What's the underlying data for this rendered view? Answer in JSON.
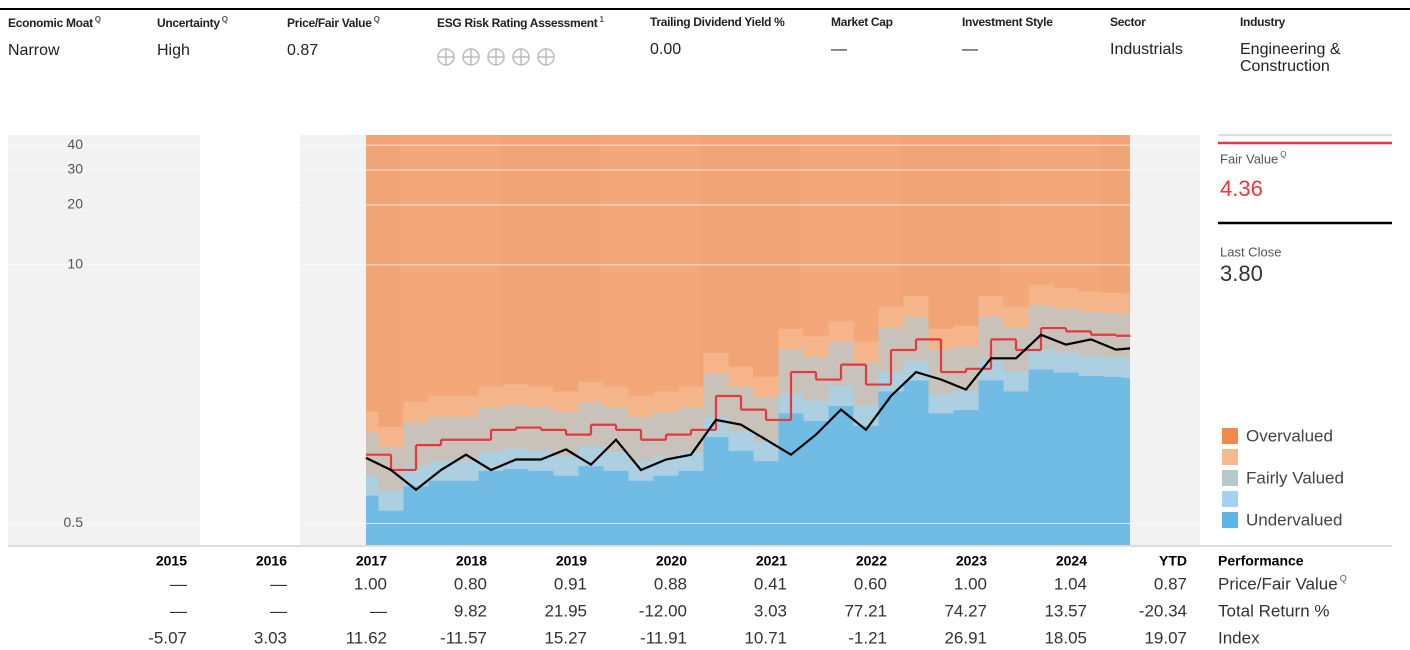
{
  "header": {
    "columns": [
      {
        "label": "Economic Moat",
        "badge": "Q",
        "value": "Narrow"
      },
      {
        "label": "Uncertainty",
        "badge": "Q",
        "value": "High"
      },
      {
        "label": "Price/Fair Value",
        "badge": "Q",
        "value": "0.87"
      },
      {
        "label": "ESG Risk Rating Assessment",
        "note": "1"
      },
      {
        "label": "Trailing Dividend Yield %",
        "value": "0.00"
      },
      {
        "label": "Market Cap",
        "value": "—"
      },
      {
        "label": "Investment Style",
        "value": "—"
      },
      {
        "label": "Sector",
        "value": "Industrials"
      },
      {
        "label": "Industry",
        "value": "Engineering & Construction"
      }
    ]
  },
  "chart_data": {
    "type": "line",
    "log_scale": true,
    "grid": true,
    "x": [
      2017.66,
      2017.91,
      2018.16,
      2018.41,
      2018.66,
      2018.91,
      2019.16,
      2019.41,
      2019.66,
      2019.91,
      2020.16,
      2020.41,
      2020.66,
      2020.91,
      2021.16,
      2021.41,
      2021.66,
      2021.91,
      2022.16,
      2022.41,
      2022.66,
      2022.91,
      2023.16,
      2023.41,
      2023.66,
      2023.91,
      2024.16,
      2024.41,
      2024.66,
      2024.91,
      2025.16,
      2025.3
    ],
    "xlim": [
      2014.08,
      2026.1
    ],
    "ylim": [
      0.39,
      45
    ],
    "yticks": [
      0.5,
      10,
      20,
      30,
      40
    ],
    "series": [
      {
        "name": "Fair Value",
        "badge": "Q",
        "display": "4.36",
        "color": "#e5383f",
        "step": true,
        "values": [
          1.11,
          0.93,
          1.24,
          1.32,
          1.32,
          1.48,
          1.52,
          1.48,
          1.4,
          1.57,
          1.48,
          1.32,
          1.4,
          1.48,
          2.19,
          1.87,
          1.66,
          2.89,
          2.65,
          3.15,
          2.5,
          3.73,
          4.22,
          2.89,
          3.0,
          4.22,
          3.73,
          4.81,
          4.63,
          4.45,
          4.4,
          4.36
        ]
      },
      {
        "name": "Last Close",
        "display": "3.80",
        "color": "#000000",
        "values": [
          1.07,
          0.93,
          0.74,
          0.93,
          1.11,
          0.93,
          1.05,
          1.05,
          1.18,
          0.99,
          1.32,
          0.93,
          1.05,
          1.11,
          1.66,
          1.57,
          1.32,
          1.11,
          1.4,
          1.87,
          1.48,
          2.19,
          2.89,
          2.65,
          2.36,
          3.39,
          3.39,
          4.45,
          3.97,
          4.22,
          3.75,
          3.8
        ]
      }
    ],
    "bands": [
      {
        "name": "Overvalued",
        "color": "#f08a4b"
      },
      {
        "name": null,
        "color": "#f6b990",
        "values": [
          1.83,
          1.53,
          2.05,
          2.18,
          2.18,
          2.44,
          2.51,
          2.44,
          2.31,
          2.59,
          2.44,
          2.18,
          2.31,
          2.44,
          3.61,
          3.09,
          2.74,
          4.77,
          4.37,
          5.2,
          4.13,
          6.15,
          6.96,
          4.77,
          4.95,
          6.96,
          6.15,
          7.94,
          7.64,
          7.34,
          7.26,
          7.19
        ]
      },
      {
        "name": "Fairly Valued",
        "color": "#b8c7c9",
        "values": [
          1.44,
          1.21,
          1.61,
          1.72,
          1.72,
          1.92,
          1.98,
          1.92,
          1.82,
          2.04,
          1.92,
          1.72,
          1.82,
          1.92,
          2.85,
          2.43,
          2.16,
          3.76,
          3.45,
          4.1,
          3.25,
          4.85,
          5.49,
          3.76,
          3.9,
          5.49,
          4.85,
          6.25,
          6.02,
          5.79,
          5.72,
          5.67
        ]
      },
      {
        "name": null,
        "color": "#a3d3ef",
        "values": [
          0.87,
          0.73,
          0.97,
          1.03,
          1.03,
          1.15,
          1.19,
          1.15,
          1.09,
          1.22,
          1.15,
          1.03,
          1.09,
          1.15,
          1.71,
          1.46,
          1.29,
          2.25,
          2.07,
          2.46,
          1.95,
          2.91,
          3.29,
          2.25,
          2.34,
          3.29,
          2.91,
          3.75,
          3.61,
          3.47,
          3.43,
          3.4
        ]
      },
      {
        "name": "Undervalued",
        "color": "#5cb5e6",
        "values": [
          0.69,
          0.58,
          0.77,
          0.82,
          0.82,
          0.92,
          0.94,
          0.92,
          0.87,
          0.97,
          0.92,
          0.82,
          0.87,
          0.92,
          1.36,
          1.16,
          1.03,
          1.79,
          1.64,
          1.95,
          1.55,
          2.31,
          2.62,
          1.79,
          1.86,
          2.62,
          2.31,
          2.98,
          2.87,
          2.76,
          2.73,
          2.7
        ]
      }
    ]
  },
  "table": {
    "title": "Performance",
    "columns": [
      "2015",
      "2016",
      "2017",
      "2018",
      "2019",
      "2020",
      "2021",
      "2022",
      "2023",
      "2024",
      "YTD"
    ],
    "rows": [
      {
        "label": "Price/Fair Value",
        "badge": "Q",
        "values": [
          "—",
          "—",
          "1.00",
          "0.80",
          "0.91",
          "0.88",
          "0.41",
          "0.60",
          "1.00",
          "1.04",
          "0.87"
        ]
      },
      {
        "label": "Total Return %",
        "values": [
          "—",
          "—",
          "—",
          "9.82",
          "21.95",
          "-12.00",
          "3.03",
          "77.21",
          "74.27",
          "13.57",
          "-20.34"
        ]
      },
      {
        "label": "Index",
        "values": [
          "-5.07",
          "3.03",
          "11.62",
          "-11.57",
          "15.27",
          "-11.91",
          "10.71",
          "-1.21",
          "26.91",
          "18.05",
          "19.07"
        ]
      }
    ]
  }
}
